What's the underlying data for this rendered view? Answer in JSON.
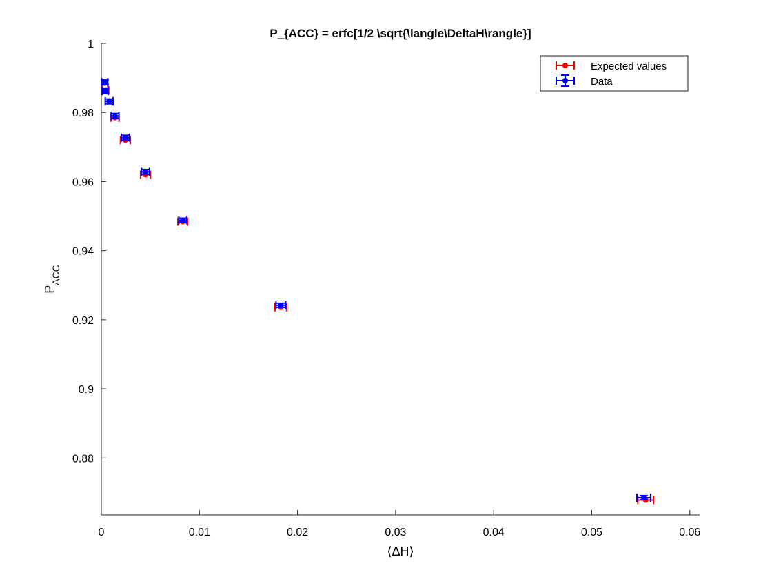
{
  "chart_data": {
    "type": "scatter",
    "title": "P_{ACC} = erfc[1/2 \\sqrt{\\langle\\DeltaH\\rangle}]",
    "ylabel_main": "P",
    "ylabel_sub": "ACC",
    "xlabel": "⟨ΔH⟩",
    "xlim": [
      0,
      0.061
    ],
    "ylim": [
      0.8635,
      1.0
    ],
    "xticks": [
      0,
      0.01,
      0.02,
      0.03,
      0.04,
      0.05,
      0.06
    ],
    "xtick_labels": [
      "0",
      "0.01",
      "0.02",
      "0.03",
      "0.04",
      "0.05",
      "0.06"
    ],
    "yticks": [
      0.88,
      0.9,
      0.92,
      0.94,
      0.96,
      0.98,
      1.0
    ],
    "ytick_labels": [
      "0.88",
      "0.9",
      "0.92",
      "0.94",
      "0.96",
      "0.98",
      "1"
    ],
    "grid": false,
    "legend_position": "top-right",
    "series": [
      {
        "name": "Expected values",
        "color": "#ff0000",
        "error_bars": "horizontal",
        "points": [
          {
            "x": 0.00035,
            "y": 0.9885,
            "xerr": 0.0003
          },
          {
            "x": 0.00045,
            "y": 0.9865,
            "xerr": 0.0003
          },
          {
            "x": 0.0008,
            "y": 0.9833,
            "xerr": 0.0004
          },
          {
            "x": 0.0014,
            "y": 0.9785,
            "xerr": 0.0004
          },
          {
            "x": 0.00245,
            "y": 0.972,
            "xerr": 0.0005
          },
          {
            "x": 0.0045,
            "y": 0.962,
            "xerr": 0.0005
          },
          {
            "x": 0.0083,
            "y": 0.9484,
            "xerr": 0.0005
          },
          {
            "x": 0.0183,
            "y": 0.9236,
            "xerr": 0.0006
          },
          {
            "x": 0.0555,
            "y": 0.8678,
            "xerr": 0.0008
          }
        ]
      },
      {
        "name": "Data",
        "color": "#0000ff",
        "error_bars": "both",
        "points": [
          {
            "x": 0.00035,
            "y": 0.9888,
            "xerr": 0.0003,
            "yerr": 0.0007
          },
          {
            "x": 0.0004,
            "y": 0.9862,
            "xerr": 0.0003,
            "yerr": 0.0007
          },
          {
            "x": 0.0008,
            "y": 0.9832,
            "xerr": 0.0004,
            "yerr": 0.0007
          },
          {
            "x": 0.0014,
            "y": 0.979,
            "xerr": 0.0004,
            "yerr": 0.0007
          },
          {
            "x": 0.00245,
            "y": 0.9727,
            "xerr": 0.0004,
            "yerr": 0.0007
          },
          {
            "x": 0.0045,
            "y": 0.9628,
            "xerr": 0.0004,
            "yerr": 0.0007
          },
          {
            "x": 0.0083,
            "y": 0.9488,
            "xerr": 0.0004,
            "yerr": 0.0006
          },
          {
            "x": 0.0183,
            "y": 0.9242,
            "xerr": 0.0005,
            "yerr": 0.0006
          },
          {
            "x": 0.0553,
            "y": 0.8685,
            "xerr": 0.0007,
            "yerr": 0.0006
          }
        ]
      }
    ]
  }
}
